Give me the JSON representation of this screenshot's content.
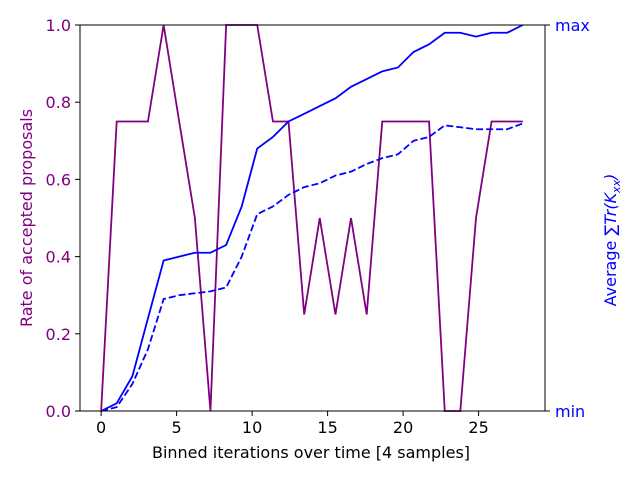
{
  "chart_data": {
    "type": "line",
    "title": "",
    "xlabel": "Binned iterations over time [4 samples]",
    "ylabel_left": "Rate of accepted proposals",
    "ylabel_right_prefix": "Average ",
    "ylabel_right_math": "∑Tr(K",
    "ylabel_right_sub": "xx",
    "ylabel_right_suffix": ")",
    "xlim": [
      -1.4,
      29.4
    ],
    "ylim_left": [
      0,
      1
    ],
    "ylim_right": [
      0,
      1
    ],
    "x_ticks": [
      0,
      5,
      10,
      15,
      20,
      25
    ],
    "x_tick_labels": [
      "0",
      "5",
      "10",
      "15",
      "20",
      "25"
    ],
    "y_left_ticks": [
      0,
      0.2,
      0.4,
      0.6,
      0.8,
      1.0
    ],
    "y_left_tick_labels": [
      "0.0",
      "0.2",
      "0.4",
      "0.6",
      "0.8",
      "1.0"
    ],
    "y_right_ticks": [
      0,
      1
    ],
    "y_right_tick_labels": [
      "min",
      "max"
    ],
    "grid": false,
    "colors": {
      "acceptance": "#800080",
      "trace": "#0000ff"
    },
    "series": [
      {
        "axis": "left",
        "style": "solid",
        "color": "#800080",
        "x": [
          0,
          1.03,
          2.07,
          3.1,
          4.14,
          5.17,
          6.21,
          7.24,
          8.28,
          9.31,
          10.34,
          11.38,
          12.41,
          13.45,
          14.48,
          15.52,
          16.55,
          17.59,
          18.62,
          19.66,
          20.69,
          21.72,
          22.76,
          23.79,
          24.83,
          25.86,
          26.9,
          27.93
        ],
        "y": [
          0.0,
          0.75,
          0.75,
          0.75,
          1.0,
          0.75,
          0.5,
          0.0,
          1.0,
          1.0,
          1.0,
          0.75,
          0.75,
          0.25,
          0.5,
          0.25,
          0.5,
          0.25,
          0.75,
          0.75,
          0.75,
          0.75,
          0.0,
          0.0,
          0.5,
          0.75,
          0.75,
          0.75
        ]
      },
      {
        "axis": "right",
        "style": "solid",
        "color": "#0000ff",
        "x": [
          0,
          1.03,
          2.07,
          3.1,
          4.14,
          5.17,
          6.21,
          7.24,
          8.28,
          9.31,
          10.34,
          11.38,
          12.41,
          13.45,
          14.48,
          15.52,
          16.55,
          17.59,
          18.62,
          19.66,
          20.69,
          21.72,
          22.76,
          23.79,
          24.83,
          25.86,
          26.9,
          27.93
        ],
        "y": [
          0.0,
          0.02,
          0.09,
          0.24,
          0.39,
          0.4,
          0.41,
          0.41,
          0.43,
          0.53,
          0.68,
          0.71,
          0.75,
          0.77,
          0.79,
          0.81,
          0.84,
          0.86,
          0.88,
          0.89,
          0.93,
          0.95,
          0.98,
          0.98,
          0.97,
          0.98,
          0.98,
          1.0
        ]
      },
      {
        "axis": "right",
        "style": "dashed",
        "color": "#0000ff",
        "x": [
          0,
          1.03,
          2.07,
          3.1,
          4.14,
          5.17,
          6.21,
          7.24,
          8.28,
          9.31,
          10.34,
          11.38,
          12.41,
          13.45,
          14.48,
          15.52,
          16.55,
          17.59,
          18.62,
          19.66,
          20.69,
          21.72,
          22.76,
          23.79,
          24.83,
          25.86,
          26.9,
          27.93
        ],
        "y": [
          0.0,
          0.01,
          0.07,
          0.16,
          0.29,
          0.3,
          0.305,
          0.31,
          0.32,
          0.4,
          0.51,
          0.53,
          0.56,
          0.58,
          0.59,
          0.61,
          0.62,
          0.64,
          0.655,
          0.665,
          0.7,
          0.71,
          0.74,
          0.735,
          0.73,
          0.73,
          0.73,
          0.745
        ]
      }
    ]
  }
}
